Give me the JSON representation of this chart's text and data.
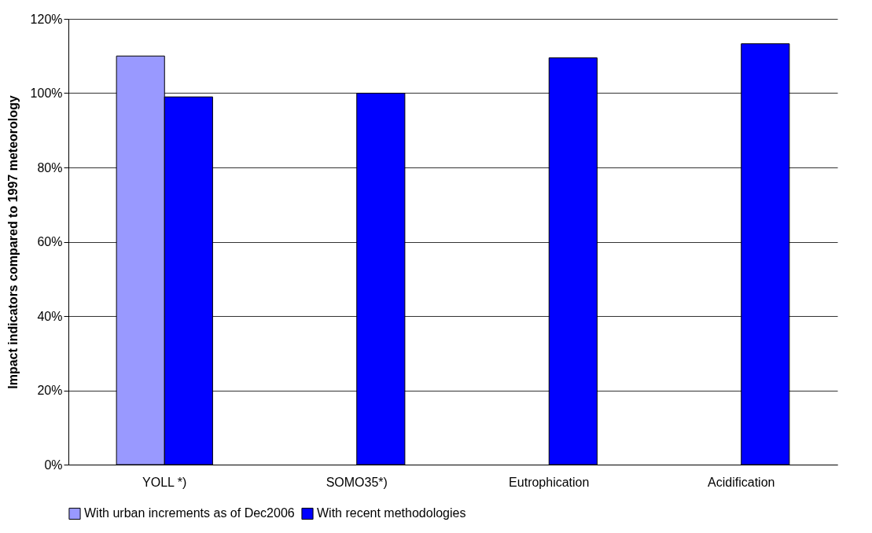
{
  "chart_data": {
    "type": "bar",
    "ylabel": "Impact indicators compared to 1997 meteorology",
    "categories": [
      "YOLL *)",
      "SOMO35*)",
      "Eutrophication",
      "Acidification"
    ],
    "series": [
      {
        "name": "With urban increments as of Dec2006",
        "color": "#9999ff",
        "values": [
          110,
          null,
          null,
          null
        ]
      },
      {
        "name": "With recent methodologies",
        "color": "#0000ff",
        "values": [
          99,
          100,
          109.5,
          113.3
        ]
      }
    ],
    "ylim": [
      0,
      120
    ],
    "yticks": [
      {
        "value": 0,
        "label": "0%"
      },
      {
        "value": 20,
        "label": "20%"
      },
      {
        "value": 40,
        "label": "40%"
      },
      {
        "value": 60,
        "label": "60%"
      },
      {
        "value": 80,
        "label": "80%"
      },
      {
        "value": 100,
        "label": "100%"
      },
      {
        "value": 120,
        "label": "120%"
      }
    ],
    "grid": "y",
    "legend": "bottom"
  }
}
